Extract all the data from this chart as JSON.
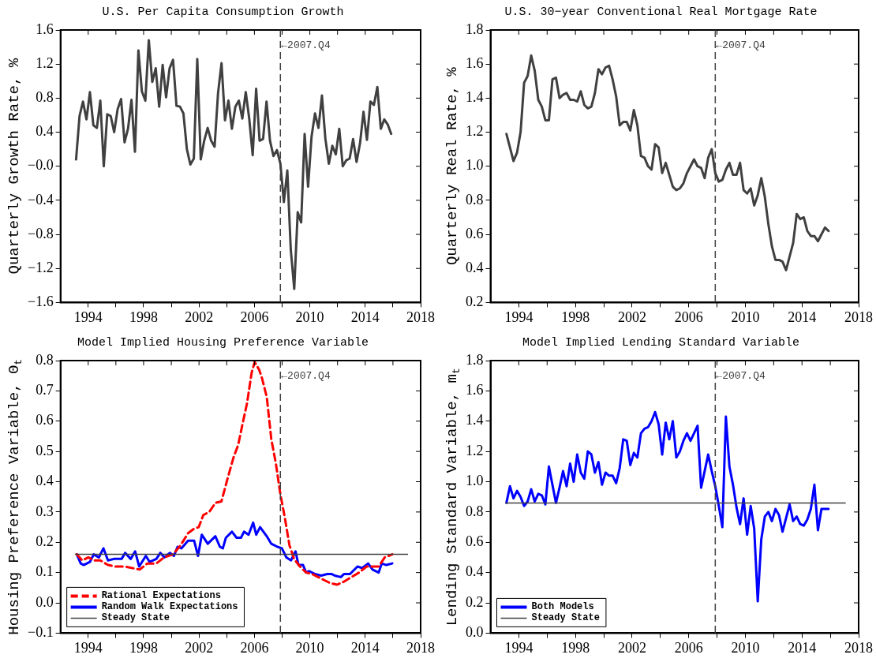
{
  "chart_data": [
    {
      "type": "line",
      "title": "U.S. Per Capita Consumption Growth",
      "ylabel": "Quarterly Growth Rate, %",
      "marker": "none",
      "x": [
        1993.125,
        1993.375,
        1993.625,
        1993.875,
        1994.125,
        1994.375,
        1994.625,
        1994.875,
        1995.125,
        1995.375,
        1995.625,
        1995.875,
        1996.125,
        1996.375,
        1996.625,
        1996.875,
        1997.125,
        1997.375,
        1997.625,
        1997.875,
        1998.125,
        1998.375,
        1998.625,
        1998.875,
        1999.125,
        1999.375,
        1999.625,
        1999.875,
        2000.125,
        2000.375,
        2000.625,
        2000.875,
        2001.125,
        2001.375,
        2001.625,
        2001.875,
        2002.125,
        2002.375,
        2002.625,
        2002.875,
        2003.125,
        2003.375,
        2003.625,
        2003.875,
        2004.125,
        2004.375,
        2004.625,
        2004.875,
        2005.125,
        2005.375,
        2005.625,
        2005.875,
        2006.125,
        2006.375,
        2006.625,
        2006.875,
        2007.125,
        2007.375,
        2007.625,
        2007.875,
        2008.125,
        2008.375,
        2008.625,
        2008.875,
        2009.125,
        2009.375,
        2009.625,
        2009.875,
        2010.125,
        2010.375,
        2010.625,
        2010.875,
        2011.125,
        2011.375,
        2011.625,
        2011.875,
        2012.125,
        2012.375,
        2012.625,
        2012.875,
        2013.125,
        2013.375,
        2013.625,
        2013.875,
        2014.125,
        2014.375,
        2014.625,
        2014.875,
        2015.125,
        2015.375,
        2015.625,
        2015.875
      ],
      "series": [
        {
          "color": "#404040",
          "values": [
            0.08,
            0.59,
            0.76,
            0.55,
            0.87,
            0.48,
            0.45,
            0.77,
            0.0,
            0.61,
            0.59,
            0.4,
            0.67,
            0.79,
            0.28,
            0.44,
            0.78,
            0.17,
            1.36,
            0.88,
            0.77,
            1.48,
            0.99,
            1.15,
            0.7,
            1.19,
            0.81,
            1.15,
            1.25,
            0.71,
            0.7,
            0.62,
            0.2,
            0.02,
            0.09,
            1.26,
            0.08,
            0.3,
            0.45,
            0.3,
            0.23,
            0.86,
            1.21,
            0.54,
            0.77,
            0.44,
            0.7,
            0.77,
            0.56,
            0.87,
            0.56,
            0.13,
            0.91,
            0.3,
            0.32,
            0.76,
            0.3,
            0.12,
            0.19,
            0.03,
            -0.42,
            -0.05,
            -0.98,
            -1.44,
            -0.54,
            -0.66,
            0.38,
            -0.24,
            0.35,
            0.62,
            0.45,
            0.83,
            0.32,
            0.03,
            0.24,
            0.14,
            0.44,
            0.0,
            0.07,
            0.09,
            0.32,
            0.05,
            0.27,
            0.64,
            0.31,
            0.76,
            0.72,
            0.93,
            0.44,
            0.55,
            0.49,
            0.38
          ]
        }
      ],
      "xlim": [
        1992,
        2018
      ],
      "xticks": [
        1994,
        {
          "value": 1996,
          "label": null
        },
        1998,
        {
          "value": 2000,
          "label": null
        },
        2002,
        {
          "value": 2004,
          "label": null
        },
        2006,
        {
          "value": 2008,
          "label": null
        },
        2010,
        {
          "value": 2012,
          "label": null
        },
        2014,
        {
          "value": 2016,
          "label": null
        },
        2018
      ],
      "ylim": [
        -1.6,
        1.6
      ],
      "yticks": [
        {
          "value": -1.6,
          "label": "−1.6"
        },
        {
          "value": -1.2,
          "label": "−1.2"
        },
        {
          "value": -0.8,
          "label": "−0.8"
        },
        {
          "value": -0.4,
          "label": "−0.4"
        },
        {
          "value": 0,
          "label": "−0.0"
        },
        0.4,
        0.8,
        1.2,
        1.6
      ],
      "ref_lines": [
        {
          "axis": "x",
          "value": 2007.875,
          "label": "←2007.Q4",
          "color": "#404040",
          "line_style": "dashed"
        }
      ]
    },
    {
      "type": "line",
      "title": "U.S. 30−year Conventional Real Mortgage Rate",
      "ylabel": "Quarterly Real Rate, %",
      "marker": "none",
      "x": [
        1993.125,
        1993.375,
        1993.625,
        1993.875,
        1994.125,
        1994.375,
        1994.625,
        1994.875,
        1995.125,
        1995.375,
        1995.625,
        1995.875,
        1996.125,
        1996.375,
        1996.625,
        1996.875,
        1997.125,
        1997.375,
        1997.625,
        1997.875,
        1998.125,
        1998.375,
        1998.625,
        1998.875,
        1999.125,
        1999.375,
        1999.625,
        1999.875,
        2000.125,
        2000.375,
        2000.625,
        2000.875,
        2001.125,
        2001.375,
        2001.625,
        2001.875,
        2002.125,
        2002.375,
        2002.625,
        2002.875,
        2003.125,
        2003.375,
        2003.625,
        2003.875,
        2004.125,
        2004.375,
        2004.625,
        2004.875,
        2005.125,
        2005.375,
        2005.625,
        2005.875,
        2006.125,
        2006.375,
        2006.625,
        2006.875,
        2007.125,
        2007.375,
        2007.625,
        2007.875,
        2008.125,
        2008.375,
        2008.625,
        2008.875,
        2009.125,
        2009.375,
        2009.625,
        2009.875,
        2010.125,
        2010.375,
        2010.625,
        2010.875,
        2011.125,
        2011.375,
        2011.625,
        2011.875,
        2012.125,
        2012.375,
        2012.625,
        2012.875,
        2013.125,
        2013.375,
        2013.625,
        2013.875,
        2014.125,
        2014.375,
        2014.625,
        2014.875,
        2015.125,
        2015.375,
        2015.625,
        2015.875
      ],
      "series": [
        {
          "color": "#404040",
          "values": [
            1.19,
            1.11,
            1.03,
            1.08,
            1.2,
            1.49,
            1.53,
            1.65,
            1.56,
            1.39,
            1.35,
            1.27,
            1.27,
            1.51,
            1.52,
            1.4,
            1.42,
            1.43,
            1.39,
            1.39,
            1.38,
            1.44,
            1.36,
            1.34,
            1.35,
            1.43,
            1.57,
            1.54,
            1.58,
            1.59,
            1.51,
            1.41,
            1.24,
            1.26,
            1.26,
            1.21,
            1.33,
            1.24,
            1.06,
            1.05,
            1.0,
            0.98,
            1.13,
            1.11,
            0.96,
            1.02,
            0.95,
            0.88,
            0.86,
            0.87,
            0.9,
            0.96,
            1.0,
            1.04,
            1.0,
            0.99,
            0.93,
            1.05,
            1.1,
            0.96,
            0.91,
            0.92,
            0.98,
            1.02,
            0.95,
            0.95,
            1.02,
            0.86,
            0.84,
            0.87,
            0.77,
            0.83,
            0.93,
            0.82,
            0.66,
            0.53,
            0.45,
            0.45,
            0.44,
            0.39,
            0.47,
            0.55,
            0.72,
            0.69,
            0.7,
            0.62,
            0.59,
            0.59,
            0.56,
            0.6,
            0.64,
            0.62
          ]
        }
      ],
      "xlim": [
        1992,
        2018
      ],
      "xticks": [
        1994,
        {
          "value": 1996,
          "label": null
        },
        1998,
        {
          "value": 2000,
          "label": null
        },
        2002,
        {
          "value": 2004,
          "label": null
        },
        2006,
        {
          "value": 2008,
          "label": null
        },
        2010,
        {
          "value": 2012,
          "label": null
        },
        2014,
        {
          "value": 2016,
          "label": null
        },
        2018
      ],
      "ylim": [
        0.2,
        1.8
      ],
      "yticks": [
        0.2,
        0.4,
        0.6,
        0.8,
        {
          "value": 1,
          "label": "1.0"
        },
        1.2,
        1.4,
        1.6,
        1.8
      ],
      "ref_lines": [
        {
          "axis": "x",
          "value": 2007.875,
          "label": "←2007.Q4",
          "color": "#404040",
          "line_style": "dashed"
        }
      ]
    },
    {
      "type": "line",
      "title": "Model Implied Housing Preference Variable",
      "ylabel": "Housing Preference Variable, Θ$_{t}$",
      "marker": "none",
      "legend": "bottom left",
      "series": [
        {
          "name": "Rational Expectations",
          "color": "#ff0000",
          "line_style": "dashed",
          "x": [
            1993.18,
            1993.57,
            1994.01,
            1994.45,
            1994.88,
            1995.43,
            1995.97,
            1996.63,
            1997.17,
            1997.72,
            1998.27,
            1998.92,
            1999.47,
            2000.12,
            2000.67,
            2001.21,
            2001.65,
            2001.98,
            2002.31,
            2002.74,
            2003.18,
            2003.62,
            2004.06,
            2004.49,
            2004.82,
            2005.14,
            2005.47,
            2005.8,
            2006.02,
            2006.34,
            2006.56,
            2006.89,
            2007.22,
            2007.55,
            2007.87,
            2008.2,
            2008.53,
            2008.86,
            2009.29,
            2009.73,
            2010.17,
            2010.6,
            2011.04,
            2011.48,
            2011.98,
            2012.46,
            2013.0,
            2013.55,
            2014.1,
            2014.53,
            2014.97,
            2015.41,
            2015.95
          ],
          "values": [
            0.16,
            0.14,
            0.15,
            0.14,
            0.14,
            0.125,
            0.12,
            0.12,
            0.115,
            0.11,
            0.13,
            0.13,
            0.15,
            0.16,
            0.19,
            0.23,
            0.245,
            0.25,
            0.29,
            0.3,
            0.33,
            0.335,
            0.41,
            0.48,
            0.52,
            0.59,
            0.66,
            0.76,
            0.795,
            0.77,
            0.74,
            0.68,
            0.54,
            0.46,
            0.36,
            0.28,
            0.19,
            0.145,
            0.12,
            0.1,
            0.095,
            0.085,
            0.075,
            0.065,
            0.06,
            0.07,
            0.085,
            0.1,
            0.12,
            0.12,
            0.12,
            0.15,
            0.16
          ]
        },
        {
          "name": "Random Walk Expectations",
          "color": "#0000ff",
          "line_style": "solid",
          "x": [
            1993.18,
            1993.46,
            1993.68,
            1994.12,
            1994.4,
            1994.77,
            1995.1,
            1995.43,
            1995.86,
            1996.41,
            1996.67,
            1997.07,
            1997.39,
            1997.68,
            1998.16,
            1998.44,
            1998.92,
            1999.21,
            1999.51,
            1999.9,
            2000.19,
            2000.45,
            2000.73,
            2001.21,
            2001.65,
            2001.93,
            2002.2,
            2002.63,
            2003.18,
            2003.51,
            2003.72,
            2003.94,
            2004.38,
            2004.71,
            2005.03,
            2005.25,
            2005.58,
            2005.91,
            2006.13,
            2006.41,
            2006.89,
            2007.22,
            2007.66,
            2007.98,
            2008.31,
            2008.64,
            2008.97,
            2009.18,
            2009.51,
            2009.73,
            2009.95,
            2010.38,
            2010.82,
            2011.26,
            2011.59,
            2011.8,
            2012.24,
            2012.46,
            2012.9,
            2013.44,
            2013.77,
            2014.21,
            2014.53,
            2014.97,
            2015.19,
            2015.52,
            2015.95
          ],
          "values": [
            0.16,
            0.13,
            0.125,
            0.135,
            0.16,
            0.15,
            0.18,
            0.14,
            0.145,
            0.145,
            0.165,
            0.145,
            0.17,
            0.12,
            0.155,
            0.135,
            0.145,
            0.165,
            0.15,
            0.165,
            0.155,
            0.185,
            0.18,
            0.205,
            0.205,
            0.155,
            0.225,
            0.195,
            0.22,
            0.185,
            0.18,
            0.215,
            0.235,
            0.215,
            0.215,
            0.235,
            0.225,
            0.265,
            0.225,
            0.25,
            0.22,
            0.195,
            0.185,
            0.18,
            0.15,
            0.14,
            0.17,
            0.125,
            0.125,
            0.1,
            0.105,
            0.095,
            0.09,
            0.095,
            0.095,
            0.09,
            0.085,
            0.095,
            0.095,
            0.12,
            0.115,
            0.13,
            0.11,
            0.1,
            0.13,
            0.125,
            0.13
          ]
        }
      ],
      "xlim": [
        1992,
        2018
      ],
      "xticks": [
        1994,
        {
          "value": 1996,
          "label": null
        },
        1998,
        {
          "value": 2000,
          "label": null
        },
        2002,
        {
          "value": 2004,
          "label": null
        },
        2006,
        {
          "value": 2008,
          "label": null
        },
        2010,
        {
          "value": 2012,
          "label": null
        },
        2014,
        {
          "value": 2016,
          "label": null
        },
        2018
      ],
      "ylim": [
        -0.1,
        0.8
      ],
      "yticks": [
        {
          "value": -0.1,
          "label": "−0.1"
        },
        {
          "value": 0,
          "label": "0.0"
        },
        0.1,
        0.2,
        0.3,
        0.4,
        0.5,
        0.6,
        0.7,
        0.8
      ],
      "ref_lines": [
        {
          "axis": "x",
          "value": 2007.875,
          "label": "←2007.Q4",
          "color": "#404040",
          "line_style": "dashed"
        },
        {
          "axis": "y",
          "value": 0.16,
          "label": "Steady State",
          "color": "#404040",
          "line_style": "solid"
        }
      ]
    },
    {
      "type": "line",
      "title": "Model Implied Lending Standard Variable",
      "ylabel": "Lending Standard Variable, m$_{t}$",
      "marker": "none",
      "legend": "bottom left",
      "x": [
        1993.125,
        1993.375,
        1993.625,
        1993.875,
        1994.125,
        1994.375,
        1994.625,
        1994.875,
        1995.125,
        1995.375,
        1995.625,
        1995.875,
        1996.125,
        1996.375,
        1996.625,
        1996.875,
        1997.125,
        1997.375,
        1997.625,
        1997.875,
        1998.125,
        1998.375,
        1998.625,
        1998.875,
        1999.125,
        1999.375,
        1999.625,
        1999.875,
        2000.125,
        2000.375,
        2000.625,
        2000.875,
        2001.125,
        2001.375,
        2001.625,
        2001.875,
        2002.125,
        2002.375,
        2002.625,
        2002.875,
        2003.125,
        2003.375,
        2003.625,
        2003.875,
        2004.125,
        2004.375,
        2004.625,
        2004.875,
        2005.125,
        2005.375,
        2005.625,
        2005.875,
        2006.125,
        2006.375,
        2006.625,
        2006.875,
        2007.125,
        2007.375,
        2007.625,
        2007.875,
        2008.125,
        2008.375,
        2008.625,
        2008.875,
        2009.125,
        2009.375,
        2009.625,
        2009.875,
        2010.125,
        2010.375,
        2010.625,
        2010.875,
        2011.125,
        2011.375,
        2011.625,
        2011.875,
        2012.125,
        2012.375,
        2012.625,
        2012.875,
        2013.125,
        2013.375,
        2013.625,
        2013.875,
        2014.125,
        2014.375,
        2014.625,
        2014.875,
        2015.125,
        2015.375,
        2015.625,
        2015.875
      ],
      "series": [
        {
          "name": "Both Models",
          "color": "#0000ff",
          "values": [
            0.86,
            0.97,
            0.89,
            0.94,
            0.9,
            0.84,
            0.87,
            0.95,
            0.87,
            0.92,
            0.91,
            0.85,
            1.1,
            0.98,
            0.86,
            0.96,
            1.07,
            0.97,
            1.12,
            1.0,
            1.18,
            1.06,
            1.02,
            1.2,
            1.18,
            1.06,
            1.13,
            0.98,
            1.06,
            1.04,
            1.04,
            0.99,
            1.09,
            1.28,
            1.27,
            1.11,
            1.19,
            1.16,
            1.32,
            1.35,
            1.36,
            1.4,
            1.46,
            1.38,
            1.18,
            1.39,
            1.28,
            1.4,
            1.16,
            1.2,
            1.27,
            1.32,
            1.27,
            1.32,
            1.37,
            0.96,
            1.07,
            1.18,
            1.07,
            0.97,
            0.84,
            0.7,
            1.43,
            1.1,
            0.98,
            0.83,
            0.72,
            0.89,
            0.65,
            0.84,
            0.69,
            0.21,
            0.62,
            0.77,
            0.8,
            0.74,
            0.82,
            0.78,
            0.67,
            0.76,
            0.85,
            0.74,
            0.77,
            0.72,
            0.71,
            0.75,
            0.82,
            0.98,
            0.68,
            0.82,
            0.82,
            0.82
          ]
        }
      ],
      "xlim": [
        1992,
        2018
      ],
      "xticks": [
        1994,
        {
          "value": 1996,
          "label": null
        },
        1998,
        {
          "value": 2000,
          "label": null
        },
        2002,
        {
          "value": 2004,
          "label": null
        },
        2006,
        {
          "value": 2008,
          "label": null
        },
        2010,
        {
          "value": 2012,
          "label": null
        },
        2014,
        {
          "value": 2016,
          "label": null
        },
        2018
      ],
      "ylim": [
        0,
        1.8
      ],
      "yticks": [
        {
          "value": 0,
          "label": "0.0"
        },
        0.2,
        0.4,
        0.6,
        0.8,
        {
          "value": 1,
          "label": "1.0"
        },
        1.2,
        1.4,
        1.6,
        1.8
      ],
      "ref_lines": [
        {
          "axis": "x",
          "value": 2007.875,
          "label": "←2007.Q4",
          "color": "#404040",
          "line_style": "dashed"
        },
        {
          "axis": "y",
          "value": 0.86,
          "label": "Steady State",
          "color": "#404040",
          "line_style": "solid"
        }
      ]
    }
  ]
}
